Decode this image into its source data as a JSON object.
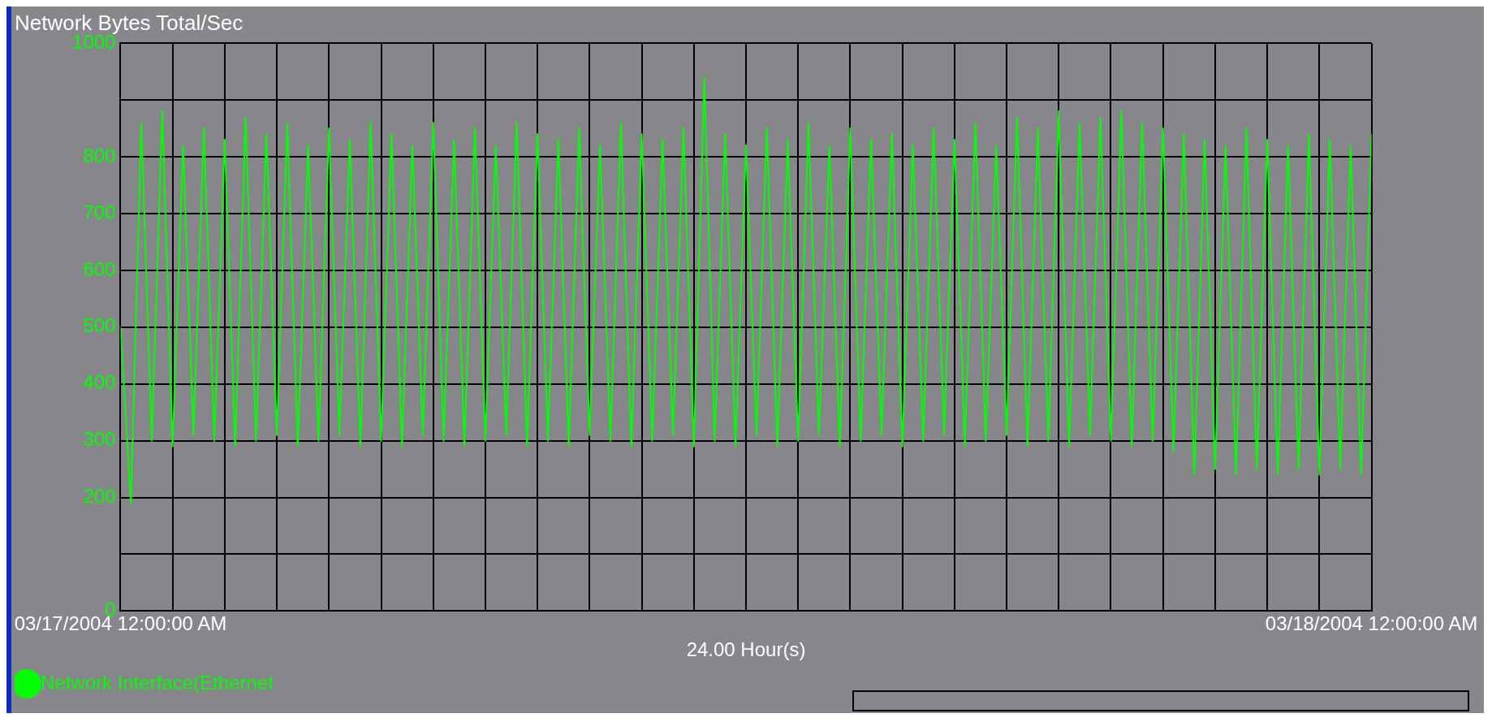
{
  "chart_data": {
    "type": "line",
    "title": "Network Bytes Total/Sec",
    "xlabel": "24.00 Hour(s)",
    "x": [
      "2004-03-17T00:00",
      "2004-03-17T00:12",
      "2004-03-17T00:24",
      "2004-03-17T00:36",
      "2004-03-17T00:48",
      "2004-03-17T01:00",
      "2004-03-17T01:12",
      "2004-03-17T01:24",
      "2004-03-17T01:36",
      "2004-03-17T01:48",
      "2004-03-17T02:00",
      "2004-03-17T02:12",
      "2004-03-17T02:24",
      "2004-03-17T02:36",
      "2004-03-17T02:48",
      "2004-03-17T03:00",
      "2004-03-17T03:12",
      "2004-03-17T03:24",
      "2004-03-17T03:36",
      "2004-03-17T03:48",
      "2004-03-17T04:00",
      "2004-03-17T04:12",
      "2004-03-17T04:24",
      "2004-03-17T04:36",
      "2004-03-17T04:48",
      "2004-03-17T05:00",
      "2004-03-17T05:12",
      "2004-03-17T05:24",
      "2004-03-17T05:36",
      "2004-03-17T05:48",
      "2004-03-17T06:00",
      "2004-03-17T06:12",
      "2004-03-17T06:24",
      "2004-03-17T06:36",
      "2004-03-17T06:48",
      "2004-03-17T07:00",
      "2004-03-17T07:12",
      "2004-03-17T07:24",
      "2004-03-17T07:36",
      "2004-03-17T07:48",
      "2004-03-17T08:00",
      "2004-03-17T08:12",
      "2004-03-17T08:24",
      "2004-03-17T08:36",
      "2004-03-17T08:48",
      "2004-03-17T09:00",
      "2004-03-17T09:12",
      "2004-03-17T09:24",
      "2004-03-17T09:36",
      "2004-03-17T09:48",
      "2004-03-17T10:00",
      "2004-03-17T10:12",
      "2004-03-17T10:24",
      "2004-03-17T10:36",
      "2004-03-17T10:48",
      "2004-03-17T11:00",
      "2004-03-17T11:12",
      "2004-03-17T11:24",
      "2004-03-17T11:36",
      "2004-03-17T11:48",
      "2004-03-17T12:00",
      "2004-03-17T12:12",
      "2004-03-17T12:24",
      "2004-03-17T12:36",
      "2004-03-17T12:48",
      "2004-03-17T13:00",
      "2004-03-17T13:12",
      "2004-03-17T13:24",
      "2004-03-17T13:36",
      "2004-03-17T13:48",
      "2004-03-17T14:00",
      "2004-03-17T14:12",
      "2004-03-17T14:24",
      "2004-03-17T14:36",
      "2004-03-17T14:48",
      "2004-03-17T15:00",
      "2004-03-17T15:12",
      "2004-03-17T15:24",
      "2004-03-17T15:36",
      "2004-03-17T15:48",
      "2004-03-17T16:00",
      "2004-03-17T16:12",
      "2004-03-17T16:24",
      "2004-03-17T16:36",
      "2004-03-17T16:48",
      "2004-03-17T17:00",
      "2004-03-17T17:12",
      "2004-03-17T17:24",
      "2004-03-17T17:36",
      "2004-03-17T17:48",
      "2004-03-17T18:00",
      "2004-03-17T18:12",
      "2004-03-17T18:24",
      "2004-03-17T18:36",
      "2004-03-17T18:48",
      "2004-03-17T19:00",
      "2004-03-17T19:12",
      "2004-03-17T19:24",
      "2004-03-17T19:36",
      "2004-03-17T19:48",
      "2004-03-17T20:00",
      "2004-03-17T20:12",
      "2004-03-17T20:24",
      "2004-03-17T20:36",
      "2004-03-17T20:48",
      "2004-03-17T21:00",
      "2004-03-17T21:12",
      "2004-03-17T21:24",
      "2004-03-17T21:36",
      "2004-03-17T21:48",
      "2004-03-17T22:00",
      "2004-03-17T22:12",
      "2004-03-17T22:24",
      "2004-03-17T22:36",
      "2004-03-17T22:48",
      "2004-03-17T23:00",
      "2004-03-17T23:12",
      "2004-03-17T23:24",
      "2004-03-17T23:36",
      "2004-03-17T23:48",
      "2004-03-18T00:00"
    ],
    "series": [
      {
        "name": "Network Interface(Ethernet",
        "color": "#00ff00",
        "values": [
          500,
          190,
          860,
          300,
          880,
          290,
          820,
          310,
          850,
          300,
          830,
          290,
          870,
          300,
          840,
          310,
          860,
          290,
          820,
          300,
          850,
          310,
          830,
          290,
          860,
          300,
          840,
          290,
          820,
          310,
          860,
          300,
          830,
          290,
          850,
          300,
          820,
          310,
          860,
          290,
          840,
          300,
          830,
          290,
          850,
          310,
          820,
          300,
          860,
          290,
          840,
          300,
          830,
          310,
          850,
          290,
          940,
          300,
          840,
          290,
          820,
          310,
          850,
          290,
          830,
          300,
          860,
          310,
          820,
          290,
          850,
          300,
          830,
          310,
          840,
          290,
          820,
          300,
          850,
          310,
          830,
          290,
          860,
          300,
          820,
          310,
          870,
          290,
          850,
          300,
          880,
          290,
          860,
          310,
          870,
          300,
          880,
          290,
          860,
          300,
          850,
          280,
          840,
          240,
          830,
          250,
          820,
          240,
          850,
          250,
          830,
          240,
          820,
          250,
          840,
          240,
          830,
          250,
          820,
          240,
          840
        ]
      }
    ],
    "xlim": [
      "2004-03-17T00:00",
      "2004-03-18T00:00"
    ],
    "xticks": [
      {
        "value": "2004-03-17T00:00",
        "label": "03/17/2004 12:00:00 AM"
      },
      {
        "value": "2004-03-17T01:00",
        "label": null
      },
      {
        "value": "2004-03-17T02:00",
        "label": null
      },
      {
        "value": "2004-03-17T03:00",
        "label": null
      },
      {
        "value": "2004-03-17T04:00",
        "label": null
      },
      {
        "value": "2004-03-17T05:00",
        "label": null
      },
      {
        "value": "2004-03-17T06:00",
        "label": null
      },
      {
        "value": "2004-03-17T07:00",
        "label": null
      },
      {
        "value": "2004-03-17T08:00",
        "label": null
      },
      {
        "value": "2004-03-17T09:00",
        "label": null
      },
      {
        "value": "2004-03-17T10:00",
        "label": null
      },
      {
        "value": "2004-03-17T11:00",
        "label": null
      },
      {
        "value": "2004-03-17T12:00",
        "label": null
      },
      {
        "value": "2004-03-17T13:00",
        "label": null
      },
      {
        "value": "2004-03-17T14:00",
        "label": null
      },
      {
        "value": "2004-03-17T15:00",
        "label": null
      },
      {
        "value": "2004-03-17T16:00",
        "label": null
      },
      {
        "value": "2004-03-17T17:00",
        "label": null
      },
      {
        "value": "2004-03-17T18:00",
        "label": null
      },
      {
        "value": "2004-03-17T19:00",
        "label": null
      },
      {
        "value": "2004-03-17T20:00",
        "label": null
      },
      {
        "value": "2004-03-17T21:00",
        "label": null
      },
      {
        "value": "2004-03-17T22:00",
        "label": null
      },
      {
        "value": "2004-03-17T23:00",
        "label": null
      },
      {
        "value": "2004-03-18T00:00",
        "label": "03/18/2004 12:00:00 AM"
      }
    ],
    "ylim": [
      0,
      1000
    ],
    "yticks": [
      0,
      {
        "value": 100,
        "label": null
      },
      200,
      300,
      400,
      500,
      600,
      700,
      800,
      {
        "value": 900,
        "label": null
      },
      1000
    ],
    "grid": true,
    "legend": "bottom left",
    "marker": "none",
    "line_style": "solid"
  }
}
